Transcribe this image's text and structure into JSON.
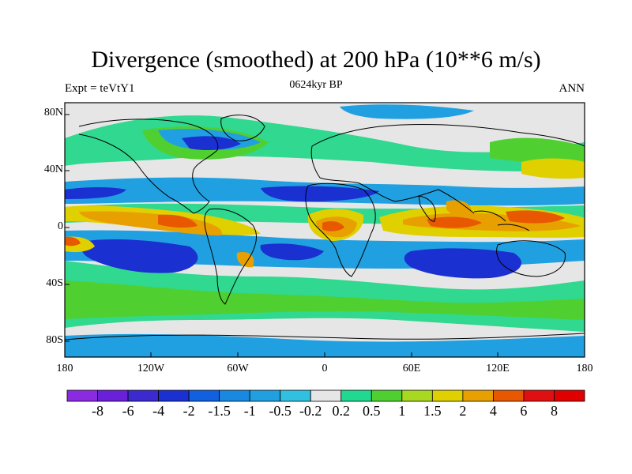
{
  "title": "Divergence (smoothed) at 200 hPa (10**6 m/s)",
  "subtitle_left": "Expt = teVtY1",
  "subtitle_center": "0624kyr BP",
  "subtitle_right": "ANN",
  "lat_labels": [
    "80N",
    "40N",
    "0",
    "40S",
    "80S"
  ],
  "lon_labels": [
    "180",
    "120W",
    "60W",
    "0",
    "60E",
    "120E",
    "180"
  ],
  "colorbar": {
    "labels": [
      "-8",
      "-6",
      "-4",
      "-2",
      "-1.5",
      "-1",
      "-0.5",
      "-0.2",
      "0.2",
      "0.5",
      "1",
      "1.5",
      "2",
      "4",
      "6",
      "8"
    ],
    "colors": [
      "#8a2be2",
      "#6a20d8",
      "#3a2ad0",
      "#1a30d0",
      "#1060e0",
      "#1888e0",
      "#20a0e0",
      "#30c0e0",
      "#e6e6e6",
      "#20d890",
      "#50d030",
      "#a8d820",
      "#e0d000",
      "#e8a000",
      "#e85800",
      "#e01010",
      "#e00000"
    ]
  },
  "colors": {
    "land_fill": "#e6e6e6",
    "coast": "#000000"
  }
}
